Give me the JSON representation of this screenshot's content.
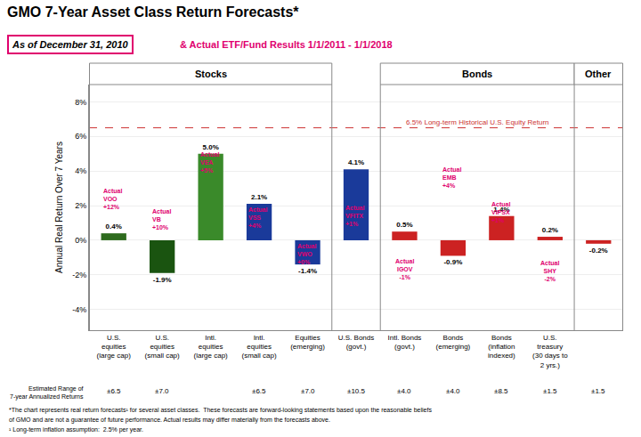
{
  "chart_data": {
    "type": "bar",
    "title": "GMO 7-Year Asset Class Return Forecasts*",
    "subtitle": "As of December 31, 2010",
    "subtitle_note": {
      "text": "& Actual ETF/Fund Results 1/1/2011 - 1/1/2018",
      "color": "#e0006e"
    },
    "ylabel": "Annual Real Return Over 7 Years",
    "categories": [
      "U.S.\nequities\n(large cap)",
      "U.S.\nequities\n(small cap)",
      "Intl.\nequities\n(large cap)",
      "Intl.\nequities\n(small cap)",
      "Equities\n(emerging)",
      "U.S. Bonds\n(govt.)",
      "Intl. Bonds\n(govt.)",
      "Bonds\n(emerging)",
      "Bonds\n(inflation\nindexed)",
      "U.S.\ntreasury\n(30 days to\n2 yrs.)",
      null
    ],
    "values": [
      0.4,
      -1.9,
      5.0,
      2.1,
      -1.4,
      4.1,
      0.5,
      -0.9,
      1.4,
      0.2,
      -0.2
    ],
    "value_labels": [
      "0.4%",
      "-1.9%",
      "5.0%",
      "2.1%",
      "-1.4%",
      "4.1%",
      "0.5%",
      "-0.9%",
      "1.4%",
      "0.2%",
      "-0.2%"
    ],
    "data_labels": true,
    "colors": [
      "#2e6b1e",
      "#1a5410",
      "#3a8a2a",
      "#1a3a9a",
      "#1a3a9a",
      "#1a3a9a",
      "#cc2222",
      "#cc2222",
      "#cc2222",
      "#cc2222",
      "#cc2222"
    ],
    "ylim": [
      -5.2,
      9.0
    ],
    "yticks": [
      {
        "value": -4,
        "label": "-4%"
      },
      {
        "value": -2,
        "label": "-2%"
      },
      {
        "value": 0,
        "label": "0%"
      },
      {
        "value": 2,
        "label": "2%"
      },
      {
        "value": 4,
        "label": "4%"
      },
      {
        "value": 6,
        "label": "6%"
      },
      {
        "value": 8,
        "label": "8%"
      }
    ],
    "grid": true,
    "reference_line": {
      "value": 6.5,
      "label": "6.5% Long-term Historical U.S. Equity Return",
      "color": "#cc3333"
    },
    "annotations": [
      {
        "category": 0,
        "y": 2.4,
        "text": "Actual\nVOO\n+12%",
        "align": "left",
        "color": "#e0006e"
      },
      {
        "category": 1,
        "y": 1.2,
        "text": "Actual\nVB\n+10%",
        "align": "left",
        "color": "#e0006e"
      },
      {
        "category": 2,
        "y": 4.5,
        "text": "Actual\nVEA\n+5%",
        "align": "left",
        "color": "#e0006e"
      },
      {
        "category": 3,
        "y": 1.3,
        "text": "Actual\nVSS\n+4%",
        "align": "left",
        "color": "#e0006e"
      },
      {
        "category": 4,
        "y": -0.8,
        "text": "Actual\nVWO\n+0%",
        "align": "left",
        "color": "#e0006e"
      },
      {
        "category": 5,
        "y": 1.4,
        "text": "Actual\nVFITX\n+1%",
        "align": "left",
        "color": "#e0006e"
      },
      {
        "category": 6,
        "y": -1.7,
        "text": "Actual\nIGOV\n-1%",
        "align": "center",
        "color": "#e0006e"
      },
      {
        "category": 7,
        "y": 3.6,
        "text": "Actual\nEMB\n+4%",
        "align": "left",
        "color": "#e0006e"
      },
      {
        "category": 8,
        "y": 1.6,
        "text": "Actual\nVIPSX\n+1%",
        "align": "left",
        "color": "#e0006e"
      },
      {
        "category": 9,
        "y": -1.8,
        "text": "Actual\nSHY\n-2%",
        "align": "center",
        "color": "#e0006e"
      }
    ],
    "sections": [
      {
        "label": "Stocks",
        "first": 0,
        "last": 4
      },
      {
        "label": "Bonds",
        "first": 6,
        "last": 9
      },
      {
        "label": "Other",
        "first": 10,
        "last": 10
      }
    ],
    "est_range_label": "Estimated Range of\n7-year Annualized Returns",
    "est_ranges": [
      "±6.5",
      "±7.0",
      null,
      "±6.5",
      "±7.0",
      "±10.5",
      "±4.0",
      "±4.0",
      "±8.5",
      "±1.5",
      "±1.5"
    ],
    "footnotes": [
      "*The chart represents real return forecasts¹ for several asset classes.  These forecasts are forward-looking statements based upon the reasonable beliefs",
      "of GMO and are not a guarantee of future performance. Actual results may differ materially from the forecasts above.",
      "¹ Long-term inflation assumption:  2.5% per year."
    ]
  }
}
